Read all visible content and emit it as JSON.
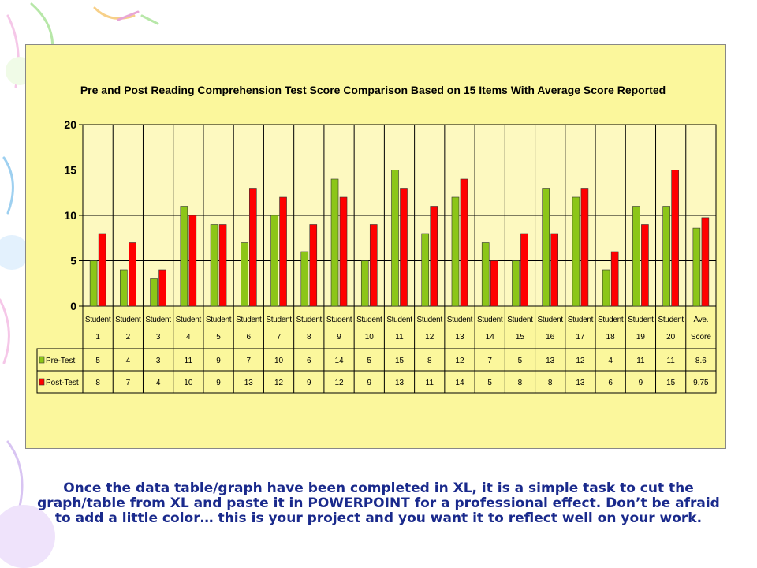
{
  "caption": "Once the data table/graph have been completed in XL, it is a simple task to cut the graph/table from XL and paste it in POWERPOINT for a professional effect.  Don’t be afraid to add a little color… this is your project and you want it to reflect well on your work.",
  "colors": {
    "pre": "#8cc618",
    "post": "#ff0000",
    "plot_bg": "#fdf9c0",
    "frame_bg": "#fbf79c",
    "caption": "#1a2a8c"
  },
  "chart_data": {
    "type": "bar",
    "title": "Pre and Post Reading Comprehension Test Score Comparison Based on 15 Items With Average Score Reported",
    "categories": [
      [
        "Student",
        "1"
      ],
      [
        "Student",
        "2"
      ],
      [
        "Student",
        "3"
      ],
      [
        "Student",
        "4"
      ],
      [
        "Student",
        "5"
      ],
      [
        "Student",
        "6"
      ],
      [
        "Student",
        "7"
      ],
      [
        "Student",
        "8"
      ],
      [
        "Student",
        "9"
      ],
      [
        "Student",
        "10"
      ],
      [
        "Student",
        "11"
      ],
      [
        "Student",
        "12"
      ],
      [
        "Student",
        "13"
      ],
      [
        "Student",
        "14"
      ],
      [
        "Student",
        "15"
      ],
      [
        "Student",
        "16"
      ],
      [
        "Student",
        "17"
      ],
      [
        "Student",
        "18"
      ],
      [
        "Student",
        "19"
      ],
      [
        "Student",
        "20"
      ],
      [
        "Ave.",
        "Score"
      ]
    ],
    "series": [
      {
        "name": "Pre-Test",
        "values": [
          5,
          4,
          3,
          11,
          9,
          7,
          10,
          6,
          14,
          5,
          15,
          8,
          12,
          7,
          5,
          13,
          12,
          4,
          11,
          11,
          8.6
        ],
        "labels": [
          "5",
          "4",
          "3",
          "11",
          "9",
          "7",
          "10",
          "6",
          "14",
          "5",
          "15",
          "8",
          "12",
          "7",
          "5",
          "13",
          "12",
          "4",
          "11",
          "11",
          "8.6"
        ]
      },
      {
        "name": "Post-Test",
        "values": [
          8,
          7,
          4,
          10,
          9,
          13,
          12,
          9,
          12,
          9,
          13,
          11,
          14,
          5,
          8,
          8,
          13,
          6,
          9,
          15,
          9.75
        ],
        "labels": [
          "8",
          "7",
          "4",
          "10",
          "9",
          "13",
          "12",
          "9",
          "12",
          "9",
          "13",
          "11",
          "14",
          "5",
          "8",
          "8",
          "13",
          "6",
          "9",
          "15",
          "9.75"
        ]
      }
    ],
    "ylim": [
      0,
      20
    ],
    "yticks": [
      0,
      5,
      10,
      15,
      20
    ],
    "grid": true,
    "legend": "data-table"
  }
}
